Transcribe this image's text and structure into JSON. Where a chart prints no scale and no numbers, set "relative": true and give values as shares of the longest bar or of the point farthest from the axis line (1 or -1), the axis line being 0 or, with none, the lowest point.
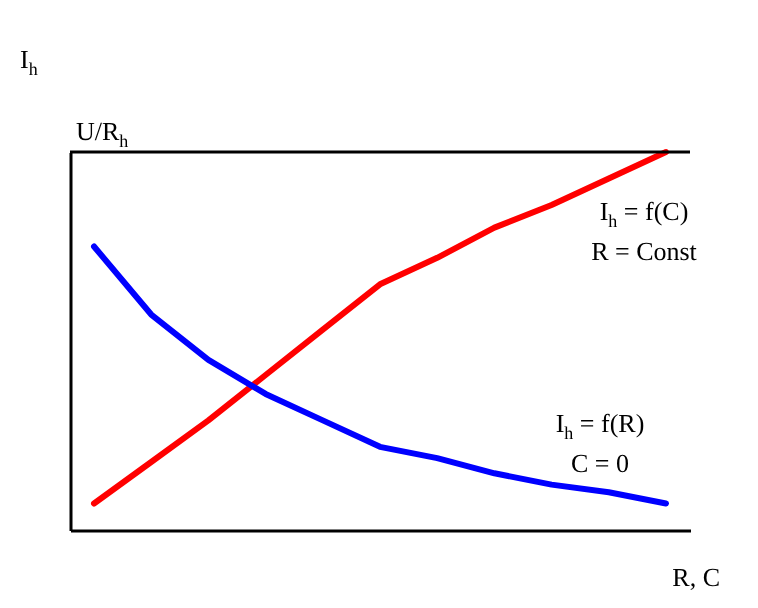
{
  "chart_data": {
    "type": "line",
    "relative": true,
    "xlabel": "R, C",
    "ylabel": "I$_{h}$",
    "categories": [
      null,
      null,
      null,
      null,
      null,
      null,
      null,
      null,
      null,
      null,
      null
    ],
    "series": [
      {
        "color": "#ff0000",
        "values": [
          0.07,
          0.18,
          0.29,
          0.41,
          0.53,
          0.65,
          0.72,
          0.8,
          0.86,
          0.93,
          1
        ]
      },
      {
        "color": "#0000ff",
        "values": [
          0.75,
          0.57,
          0.45,
          0.36,
          0.29,
          0.22,
          0.19,
          0.15,
          0.12,
          0.1,
          0.07
        ]
      }
    ],
    "ref_lines": [
      {
        "axis": "y",
        "value": 1,
        "label": "U/R$_{h}$",
        "color": "#000000"
      }
    ],
    "annotations": [
      "I$_{h}$ = f(C)",
      "R = Const",
      "I$_{h}$ = f(R)",
      "C = 0"
    ]
  }
}
